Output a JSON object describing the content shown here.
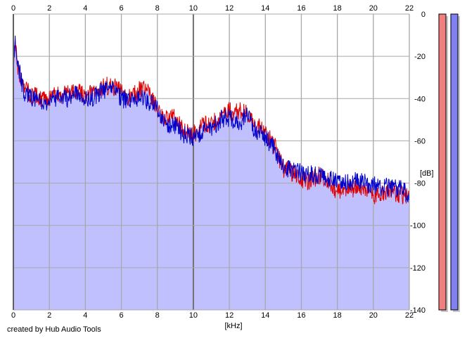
{
  "chart_data": {
    "type": "line",
    "x_unit_label": "[kHz]",
    "y_unit_label": "[dB]",
    "xlim": [
      0,
      22
    ],
    "ylim": [
      -140,
      0
    ],
    "x_ticks": [
      "0",
      "2",
      "4",
      "6",
      "8",
      "10",
      "12",
      "14",
      "16",
      "18",
      "20",
      "22"
    ],
    "y_ticks": [
      "0",
      "-20",
      "-40",
      "-60",
      "-80",
      "-100",
      "-120",
      "-140"
    ],
    "grid": true,
    "fill_color": "#c0c0ff",
    "series": [
      {
        "color": "#e00000",
        "x": [
          0,
          0.1,
          0.3,
          0.6,
          1,
          1.5,
          2,
          2.5,
          3,
          3.5,
          4,
          4.5,
          5,
          5.5,
          6,
          6.5,
          7,
          7.5,
          8,
          8.5,
          9,
          9.5,
          10,
          10.5,
          11,
          11.5,
          12,
          12.5,
          13,
          13.5,
          14,
          14.5,
          15,
          15.5,
          16,
          16.5,
          17,
          17.5,
          18,
          18.5,
          19,
          19.5,
          20,
          20.5,
          21,
          21.5,
          22
        ],
        "y": [
          -22,
          -14,
          -28,
          -35,
          -38,
          -40,
          -40,
          -38,
          -38,
          -36,
          -39,
          -37,
          -34,
          -34,
          -37,
          -40,
          -36,
          -36,
          -46,
          -50,
          -49,
          -55,
          -57,
          -53,
          -52,
          -48,
          -46,
          -46,
          -47,
          -53,
          -56,
          -62,
          -73,
          -75,
          -78,
          -79,
          -76,
          -79,
          -84,
          -83,
          -82,
          -81,
          -87,
          -84,
          -84,
          -85,
          -87
        ]
      },
      {
        "color": "#0000cc",
        "x": [
          0,
          0.1,
          0.3,
          0.6,
          1,
          1.5,
          2,
          2.5,
          3,
          3.5,
          4,
          4.5,
          5,
          5.5,
          6,
          6.5,
          7,
          7.5,
          8,
          8.5,
          9,
          9.5,
          10,
          10.5,
          11,
          11.5,
          12,
          12.5,
          13,
          13.5,
          14,
          14.5,
          15,
          15.5,
          16,
          16.5,
          17,
          17.5,
          18,
          18.5,
          19,
          19.5,
          20,
          20.5,
          21,
          21.5,
          22
        ],
        "y": [
          -20,
          -12,
          -26,
          -37,
          -39,
          -42,
          -41,
          -39,
          -40,
          -38,
          -41,
          -39,
          -36,
          -35,
          -40,
          -42,
          -40,
          -41,
          -45,
          -52,
          -53,
          -57,
          -59,
          -55,
          -54,
          -50,
          -49,
          -52,
          -48,
          -56,
          -58,
          -64,
          -72,
          -74,
          -75,
          -76,
          -77,
          -78,
          -80,
          -79,
          -79,
          -80,
          -81,
          -82,
          -82,
          -83,
          -85
        ]
      }
    ],
    "meters": [
      {
        "color": "#f08080",
        "level": 1.0
      },
      {
        "color": "#8080f0",
        "level": 1.0
      }
    ]
  },
  "footer": {
    "credit": "created by Hub Audio Tools"
  }
}
